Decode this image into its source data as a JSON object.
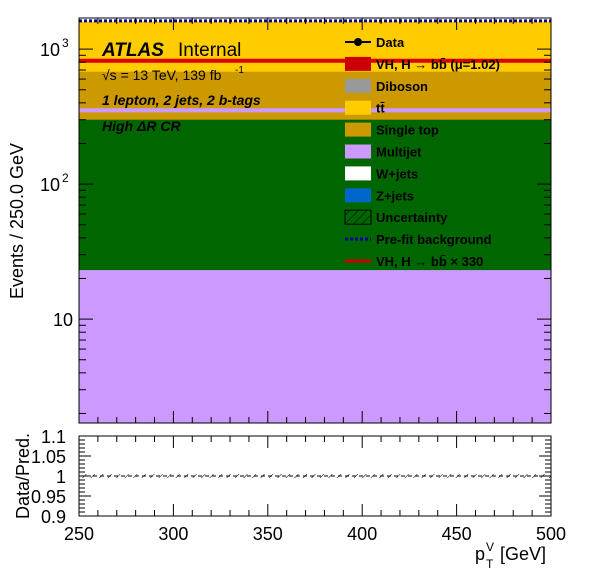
{
  "chart_data": [
    {
      "type": "area",
      "title": "",
      "xlabel": "p_T^V [GeV]",
      "ylabel": "Events / 250.0 GeV",
      "xlim": [
        250,
        500
      ],
      "ylim": [
        1.7,
        1700
      ],
      "yscale": "log",
      "x_ticks": [
        250,
        300,
        350,
        400,
        450,
        500
      ],
      "y_tick_labels": [
        {
          "value": 10,
          "label": "10"
        },
        {
          "value": 100,
          "label": "10",
          "exp": "2"
        },
        {
          "value": 1000,
          "label": "10",
          "exp": "3"
        }
      ],
      "stack": [
        {
          "name": "Z+jets",
          "top": 23,
          "color": "#0066cc"
        },
        {
          "name": "W+jets",
          "top": 23,
          "color": "#ffffff"
        },
        {
          "name": "Multijet",
          "top": 23,
          "color": "#cc99ff"
        },
        {
          "name": "",
          "top": 300,
          "color": "#006600"
        },
        {
          "name": "Single top",
          "top": 340,
          "color": "#cc9900"
        },
        {
          "name": "",
          "top": 365,
          "color": "#cc99ff"
        },
        {
          "name": "",
          "top": 680,
          "color": "#cc9900"
        },
        {
          "name": "tt̄",
          "top": 1600,
          "color": "#ffcc00"
        }
      ],
      "signal_line_value": 820,
      "prefit_line_value": 1620,
      "annotations": {
        "atlas": "ATLAS",
        "internal": "Internal",
        "energy": "√s = 13 TeV, 139 fb",
        "energy_exp": "-1",
        "selection": "1 lepton, 2 jets, 2 b-tags",
        "region": "High ΔR CR"
      },
      "legend": {
        "placement": "top-right",
        "entries": [
          {
            "label": "Data",
            "kind": "marker",
            "color": "#000000"
          },
          {
            "label": "VH, H → bb̄ (μ=1.02)",
            "kind": "box",
            "color": "#cc0000"
          },
          {
            "label": "Diboson",
            "kind": "box",
            "color": "#999999"
          },
          {
            "label": "tt̄",
            "kind": "box",
            "color": "#ffcc00"
          },
          {
            "label": "Single top",
            "kind": "box",
            "color": "#cc9900"
          },
          {
            "label": "Multijet",
            "kind": "box",
            "color": "#cc99ff"
          },
          {
            "label": "W+jets",
            "kind": "box",
            "color": "#ffffff"
          },
          {
            "label": "Z+jets",
            "kind": "box",
            "color": "#0066cc"
          },
          {
            "label": "Uncertainty",
            "kind": "hatch",
            "color": "#000000"
          },
          {
            "label": "Pre-fit background",
            "kind": "dash",
            "color": "#000099"
          },
          {
            "label": "VH, H → bb̄ × 330",
            "kind": "line",
            "color": "#cc0000"
          }
        ]
      }
    },
    {
      "type": "line",
      "title": "",
      "xlabel": "p_T^V [GeV]",
      "ylabel": "Data/Pred.",
      "xlim": [
        250,
        500
      ],
      "ylim": [
        0.9,
        1.1
      ],
      "y_ticks": [
        "0.9",
        "0.95",
        "1",
        "1.05",
        "1.1"
      ],
      "x": [
        250,
        500
      ],
      "values": [
        1.0,
        1.0
      ],
      "band": [
        0.995,
        1.005
      ]
    }
  ]
}
